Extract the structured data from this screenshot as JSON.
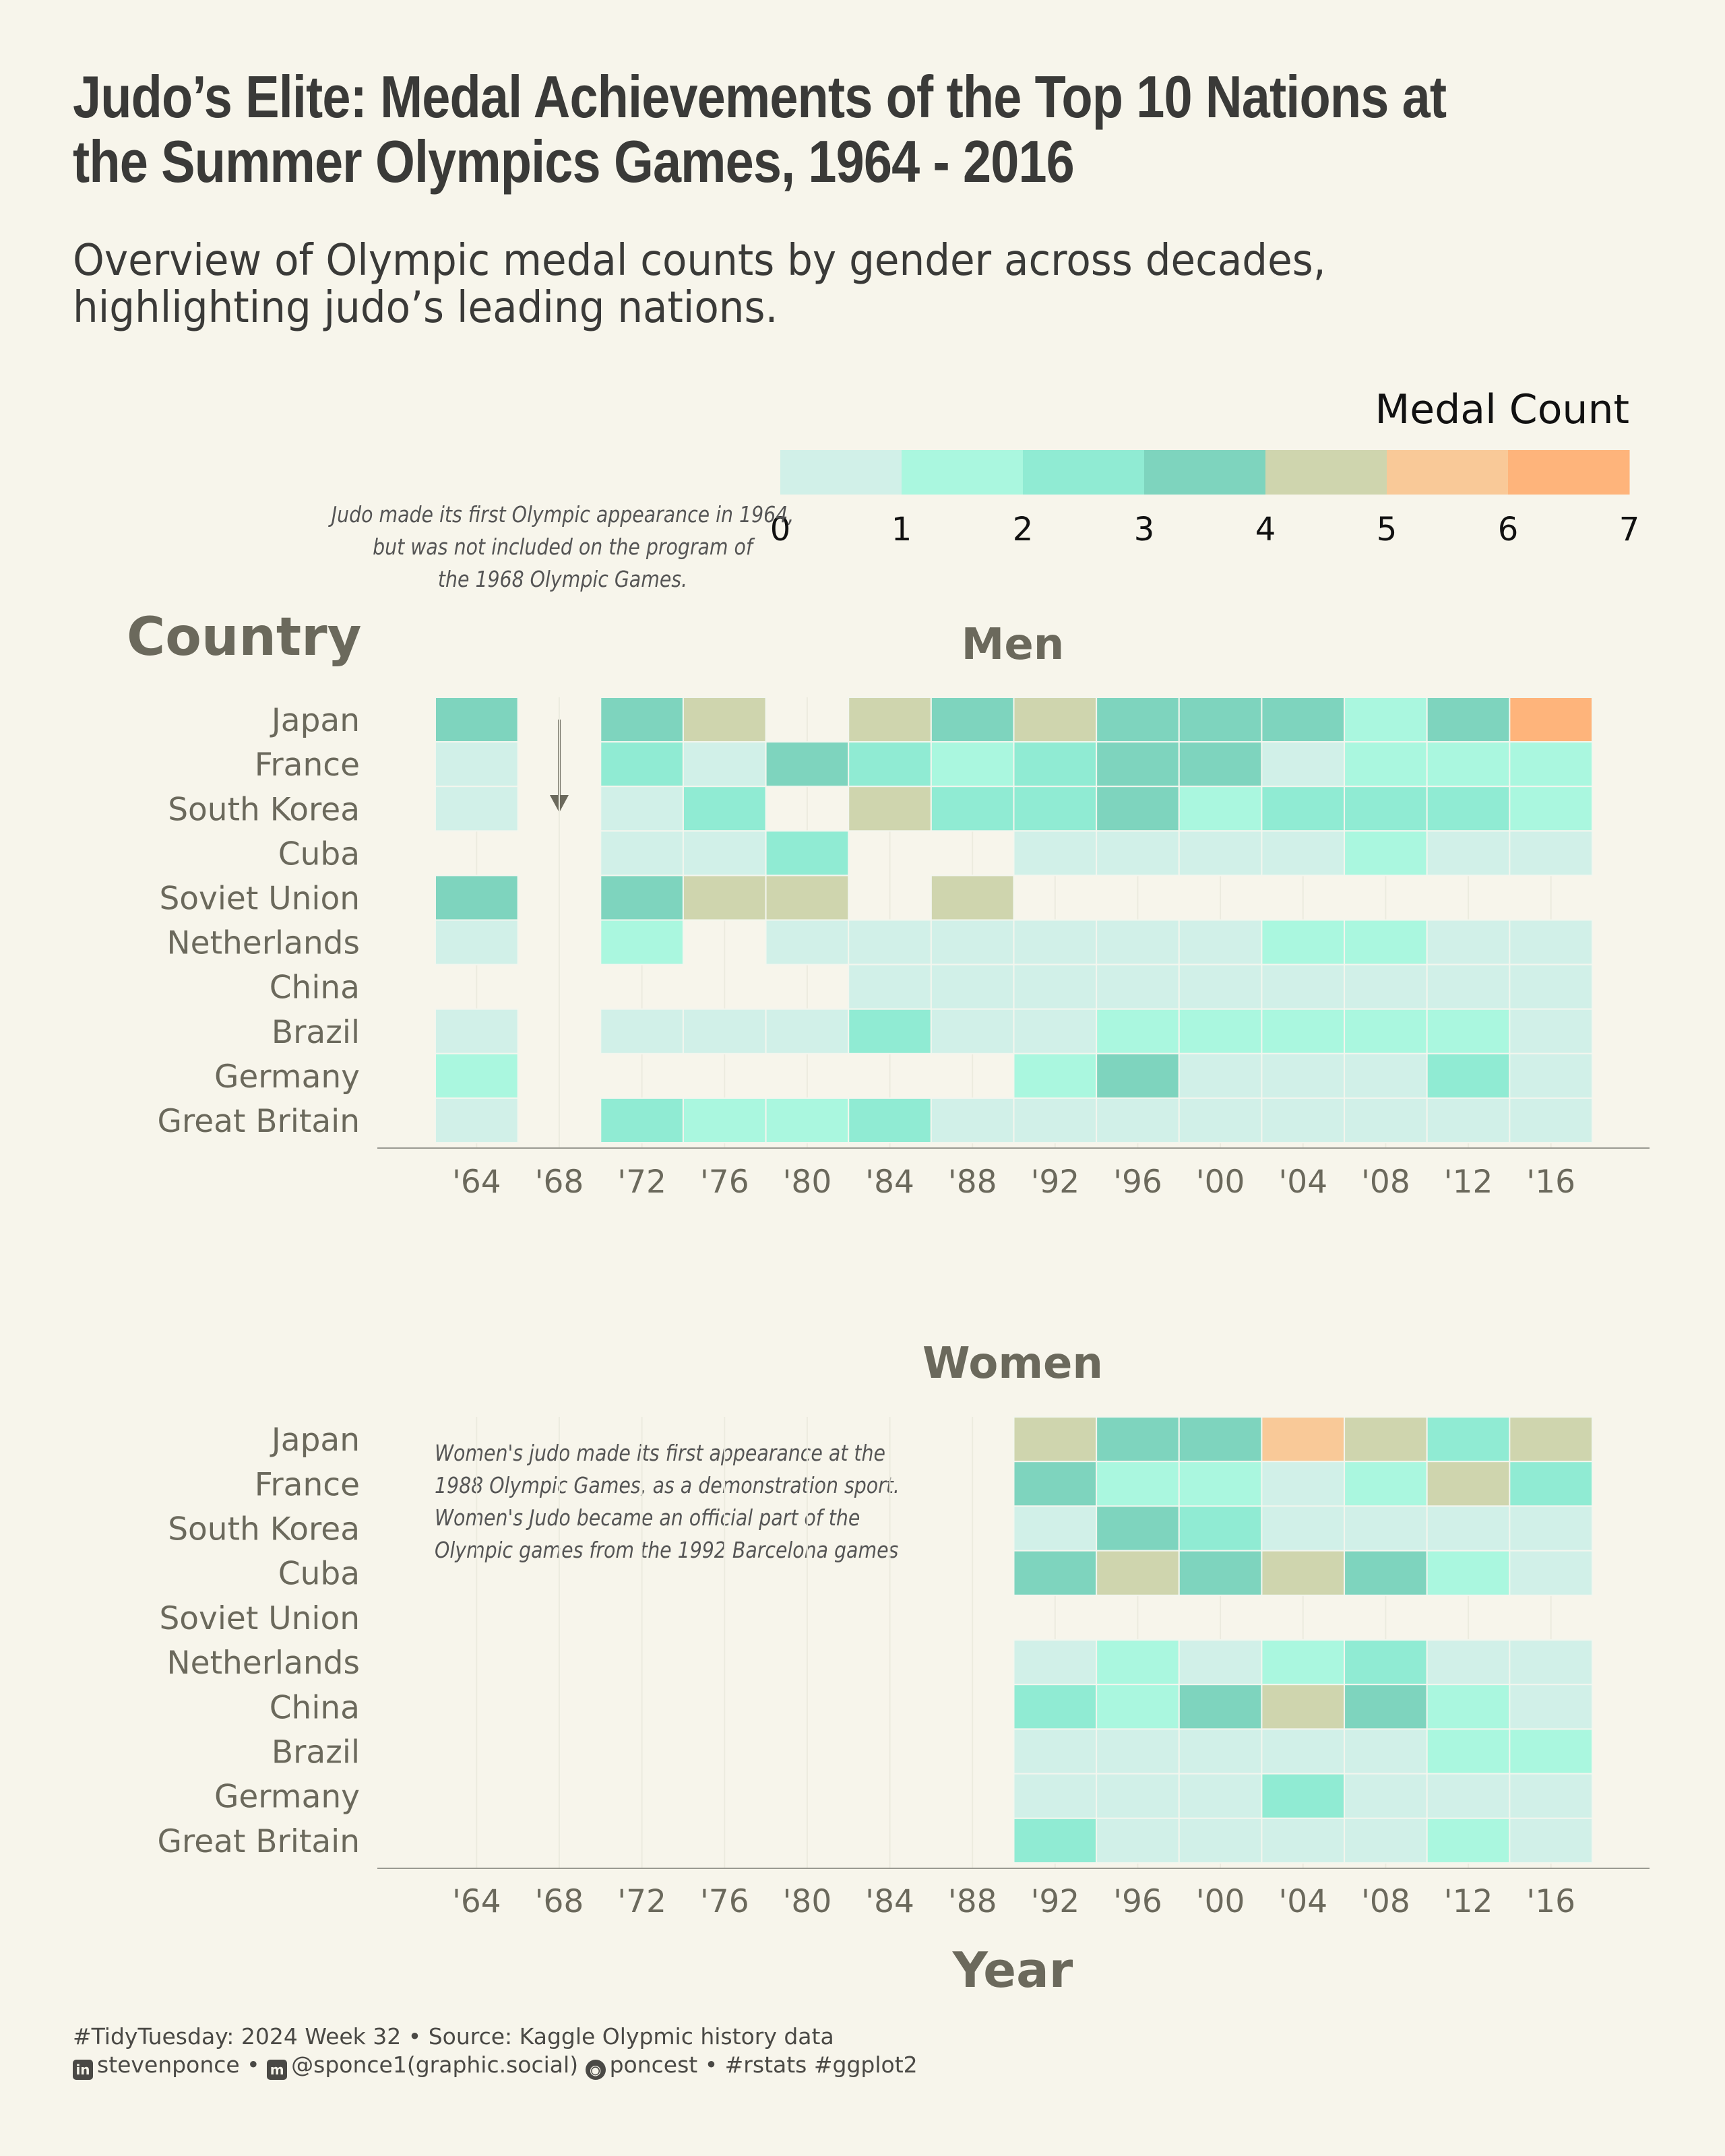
{
  "header": {
    "title": "Judo’s Elite: Medal Achievements of the Top 10 Nations at the Summer Olympics Games, 1964 - 2016",
    "subtitle": "Overview of Olympic medal counts by gender across decades, highlighting judo’s leading nations."
  },
  "legend": {
    "title": "Medal Count",
    "ticks": [
      "0",
      "1",
      "2",
      "3",
      "4",
      "5",
      "6",
      "7"
    ],
    "colors": [
      "#d1f0e8",
      "#aaf7df",
      "#90ebd3",
      "#7ed4be",
      "#cfd5ae",
      "#f9c998",
      "#feb47b"
    ]
  },
  "annotations": {
    "men_note": [
      "Judo made its first Olympic appearance in 1964,",
      "but was not included on the program of",
      "the 1968 Olympic Games."
    ],
    "women_note": [
      "Women's judo made its first appearance at the",
      "1988 Olympic Games, as a demonstration sport.",
      "Women's Judo became an official part of the",
      "Olympic games from the 1992 Barcelona games"
    ]
  },
  "chart_data": {
    "type": "heatmap",
    "y_axis_title": "Country",
    "x_axis_title": "Year",
    "countries": [
      "Japan",
      "France",
      "South Korea",
      "Cuba",
      "Soviet Union",
      "Netherlands",
      "China",
      "Brazil",
      "Germany",
      "Great Britain"
    ],
    "years": [
      1964,
      1968,
      1972,
      1976,
      1980,
      1984,
      1988,
      1992,
      1996,
      2000,
      2004,
      2008,
      2012,
      2016
    ],
    "year_labels": [
      "'64",
      "'68",
      "'72",
      "'76",
      "'80",
      "'84",
      "'88",
      "'92",
      "'96",
      "'00",
      "'04",
      "'08",
      "'12",
      "'16"
    ],
    "panels": [
      {
        "name": "Men",
        "values": [
          [
            3,
            null,
            3,
            4,
            null,
            4,
            3,
            4,
            3,
            3,
            3,
            1,
            3,
            6
          ],
          [
            0,
            null,
            2,
            0,
            3,
            2,
            1,
            2,
            3,
            3,
            0,
            1,
            1,
            1
          ],
          [
            0,
            null,
            0,
            2,
            null,
            4,
            2,
            2,
            3,
            1,
            2,
            2,
            2,
            1
          ],
          [
            null,
            null,
            0,
            0,
            2,
            null,
            null,
            0,
            0,
            0,
            0,
            1,
            0,
            0
          ],
          [
            3,
            null,
            3,
            4,
            4,
            null,
            4,
            null,
            null,
            null,
            null,
            null,
            null,
            null
          ],
          [
            0,
            null,
            1,
            null,
            0,
            0,
            0,
            0,
            0,
            0,
            1,
            1,
            0,
            0
          ],
          [
            null,
            null,
            null,
            null,
            null,
            0,
            0,
            0,
            0,
            0,
            0,
            0,
            0,
            0
          ],
          [
            0,
            null,
            0,
            0,
            0,
            2,
            0,
            0,
            1,
            1,
            1,
            1,
            1,
            0
          ],
          [
            1,
            null,
            null,
            null,
            null,
            null,
            null,
            1,
            3,
            0,
            0,
            0,
            2,
            0
          ],
          [
            0,
            null,
            2,
            1,
            1,
            2,
            0,
            0,
            0,
            0,
            0,
            0,
            0,
            0
          ]
        ]
      },
      {
        "name": "Women",
        "values": [
          [
            null,
            null,
            null,
            null,
            null,
            null,
            null,
            4,
            3,
            3,
            5,
            4,
            2,
            4
          ],
          [
            null,
            null,
            null,
            null,
            null,
            null,
            null,
            3,
            1,
            1,
            0,
            1,
            4,
            2
          ],
          [
            null,
            null,
            null,
            null,
            null,
            null,
            null,
            0,
            3,
            2,
            0,
            0,
            0,
            0
          ],
          [
            null,
            null,
            null,
            null,
            null,
            null,
            null,
            3,
            4,
            3,
            4,
            3,
            1,
            0
          ],
          [
            null,
            null,
            null,
            null,
            null,
            null,
            null,
            null,
            null,
            null,
            null,
            null,
            null,
            null
          ],
          [
            null,
            null,
            null,
            null,
            null,
            null,
            null,
            0,
            1,
            0,
            1,
            2,
            0,
            0
          ],
          [
            null,
            null,
            null,
            null,
            null,
            null,
            null,
            2,
            1,
            3,
            4,
            3,
            1,
            0
          ],
          [
            null,
            null,
            null,
            null,
            null,
            null,
            null,
            0,
            0,
            0,
            0,
            0,
            1,
            1
          ],
          [
            null,
            null,
            null,
            null,
            null,
            null,
            null,
            0,
            0,
            0,
            2,
            0,
            0,
            0
          ],
          [
            null,
            null,
            null,
            null,
            null,
            null,
            null,
            2,
            0,
            0,
            0,
            0,
            1,
            0
          ]
        ]
      }
    ]
  },
  "footer": {
    "line1": "#TidyTuesday: 2024 Week 32 • Source: Kaggle Olypmic history data",
    "linkedin_icon_glyph": "in",
    "linkedin": "stevenponce •",
    "mastodon_icon_glyph": "m",
    "mastodon": "@sponce1(graphic.social)",
    "github_icon_glyph": "◉",
    "github": "poncest • #rstats #ggplot2"
  }
}
